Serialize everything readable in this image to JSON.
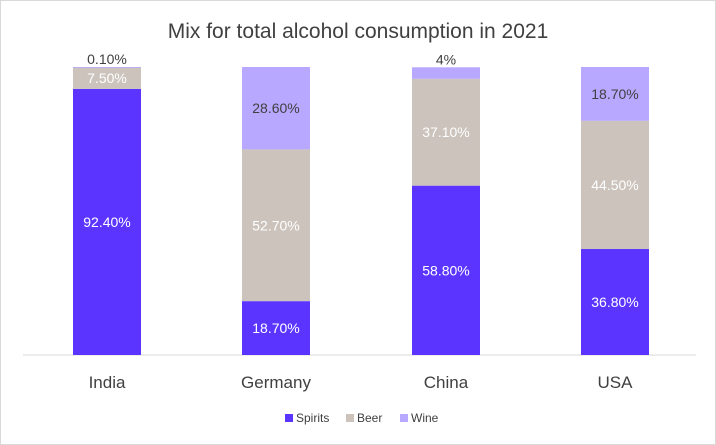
{
  "chart_data": {
    "type": "bar",
    "stacked": true,
    "title": "Mix for total alcohol consumption in 2021",
    "categories": [
      "India",
      "Germany",
      "China",
      "USA"
    ],
    "series": [
      {
        "name": "Spirits",
        "color": "#5b35ff",
        "label_color": "#ffffff",
        "values": [
          92.4,
          18.7,
          58.8,
          36.8
        ],
        "labels": [
          "92.40%",
          "18.70%",
          "58.80%",
          "36.80%"
        ]
      },
      {
        "name": "Beer",
        "color": "#cbc3bc",
        "label_color": "#ffffff",
        "values": [
          7.5,
          52.7,
          37.1,
          44.5
        ],
        "labels": [
          "7.50%",
          "52.70%",
          "37.10%",
          "44.50%"
        ]
      },
      {
        "name": "Wine",
        "color": "#b9a8ff",
        "label_color": "#404040",
        "values": [
          0.1,
          28.6,
          4,
          18.7
        ],
        "labels": [
          "0.10%",
          "28.60%",
          "4%",
          "18.70%"
        ]
      }
    ],
    "ylim": [
      0,
      100
    ],
    "legend": "bottom",
    "grid": false
  }
}
